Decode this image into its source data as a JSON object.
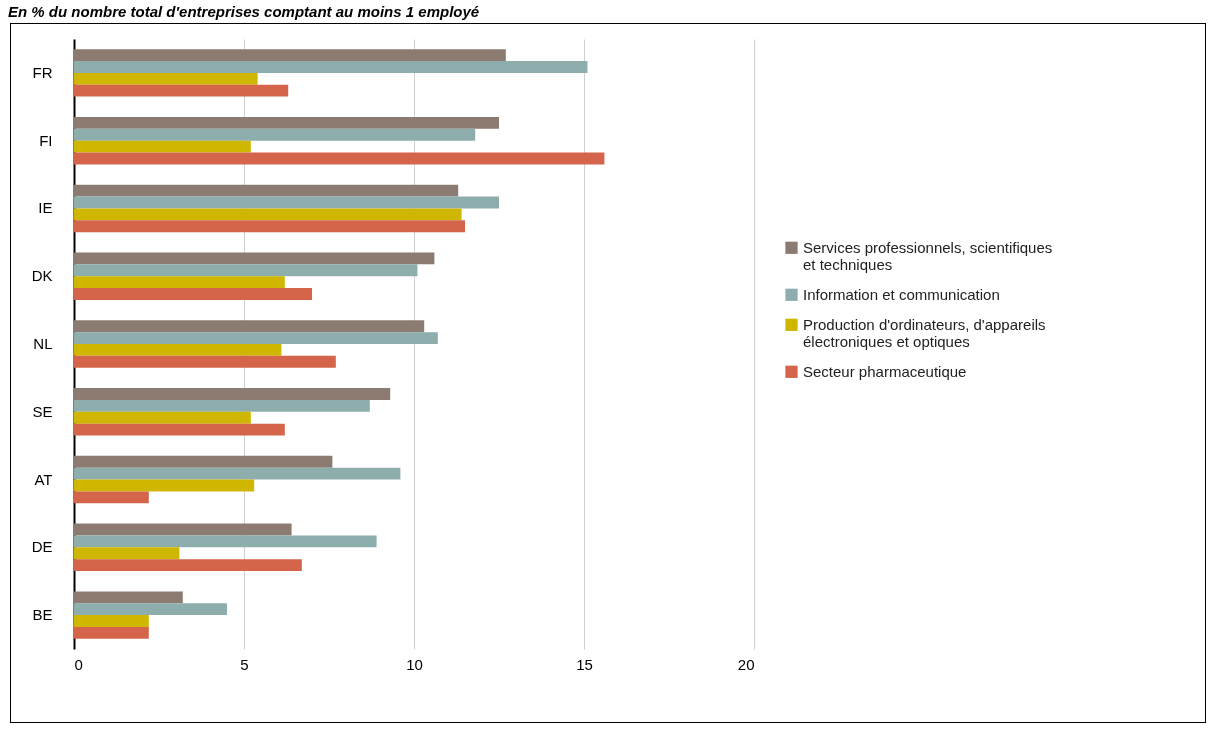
{
  "chart_data": {
    "type": "bar",
    "orientation": "horizontal",
    "title": "En % du nombre total d'entreprises comptant au moins 1 employé",
    "categories": [
      "FR",
      "FI",
      "IE",
      "DK",
      "NL",
      "SE",
      "AT",
      "DE",
      "BE"
    ],
    "series": [
      {
        "name": "Services professionnels, scientifiques et techniques",
        "color": "#8c7b70",
        "values": [
          12.7,
          12.5,
          11.3,
          10.6,
          10.3,
          9.3,
          7.6,
          6.4,
          3.2
        ]
      },
      {
        "name": "Information et communication",
        "color": "#8eadad",
        "values": [
          15.1,
          11.8,
          12.5,
          10.1,
          10.7,
          8.7,
          9.6,
          8.9,
          4.5
        ]
      },
      {
        "name": "Production d'ordinateurs, d'appareils électroniques et optiques",
        "color": "#cfb600",
        "values": [
          5.4,
          5.2,
          11.4,
          6.2,
          6.1,
          5.2,
          5.3,
          3.1,
          2.2
        ]
      },
      {
        "name": "Secteur pharmaceutique",
        "color": "#d4644a",
        "values": [
          6.3,
          15.6,
          11.5,
          7.0,
          7.7,
          6.2,
          2.2,
          6.7,
          2.2
        ]
      }
    ],
    "xlim": [
      0,
      20
    ],
    "xticks": [
      0,
      5,
      10,
      15,
      20
    ],
    "grid": "x",
    "legend": "right"
  }
}
